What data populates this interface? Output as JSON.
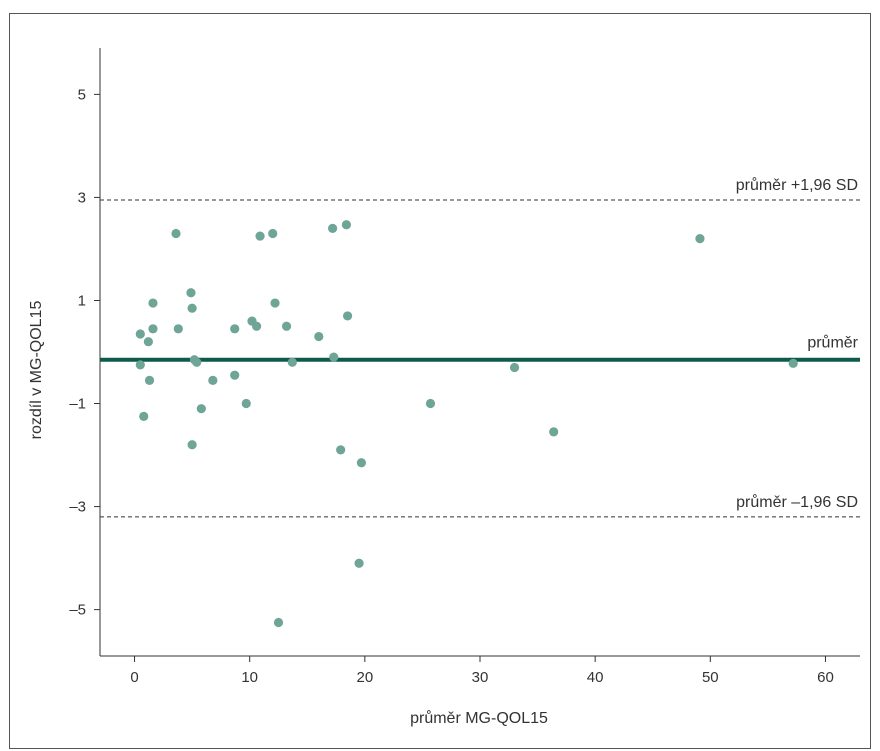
{
  "chart_data": {
    "type": "scatter",
    "title": "",
    "xlabel": "průměr MG-QOL15",
    "ylabel": "rozdíl v MG-QOL15",
    "xlim": [
      -3,
      63
    ],
    "ylim": [
      -5.9,
      5.9
    ],
    "x_ticks": [
      0,
      10,
      20,
      30,
      40,
      50,
      60
    ],
    "x_tick_labels": [
      "0",
      "10",
      "20",
      "30",
      "40",
      "50",
      "60"
    ],
    "y_ticks": [
      -5,
      -3,
      -1,
      1,
      3,
      5
    ],
    "y_tick_labels": [
      "–5",
      "–3",
      "–1",
      "1",
      "3",
      "5"
    ],
    "grid": false,
    "colors": {
      "points": "#6ea596",
      "mean_line": "#0e5a4c",
      "sd_lines": "#333333"
    },
    "reference_lines": [
      {
        "label": "průměr +1,96 SD",
        "y": 2.95,
        "style": "dashed"
      },
      {
        "label": "průměr",
        "y": -0.15,
        "style": "solid"
      },
      {
        "label": "průměr –1,96 SD",
        "y": -3.2,
        "style": "dashed"
      }
    ],
    "points": [
      {
        "x": 0.5,
        "y": 0.35
      },
      {
        "x": 0.5,
        "y": -0.25
      },
      {
        "x": 0.8,
        "y": -1.25
      },
      {
        "x": 1.2,
        "y": 0.2
      },
      {
        "x": 1.3,
        "y": -0.55
      },
      {
        "x": 1.6,
        "y": 0.45
      },
      {
        "x": 1.6,
        "y": 0.95
      },
      {
        "x": 3.6,
        "y": 2.3
      },
      {
        "x": 3.8,
        "y": 0.45
      },
      {
        "x": 4.9,
        "y": 1.15
      },
      {
        "x": 5.0,
        "y": 0.85
      },
      {
        "x": 5.0,
        "y": -1.8
      },
      {
        "x": 5.2,
        "y": -0.15
      },
      {
        "x": 5.4,
        "y": -0.2
      },
      {
        "x": 5.8,
        "y": -1.1
      },
      {
        "x": 6.8,
        "y": -0.55
      },
      {
        "x": 8.7,
        "y": -0.45
      },
      {
        "x": 8.7,
        "y": 0.45
      },
      {
        "x": 9.7,
        "y": -1.0
      },
      {
        "x": 10.2,
        "y": 0.6
      },
      {
        "x": 10.6,
        "y": 0.5
      },
      {
        "x": 10.9,
        "y": 2.25
      },
      {
        "x": 12.0,
        "y": 2.3
      },
      {
        "x": 12.2,
        "y": 0.95
      },
      {
        "x": 12.5,
        "y": -5.25
      },
      {
        "x": 13.2,
        "y": 0.5
      },
      {
        "x": 13.7,
        "y": -0.2
      },
      {
        "x": 16.0,
        "y": 0.3
      },
      {
        "x": 17.2,
        "y": 2.4
      },
      {
        "x": 17.3,
        "y": -0.1
      },
      {
        "x": 17.9,
        "y": -1.9
      },
      {
        "x": 18.4,
        "y": 2.47
      },
      {
        "x": 18.5,
        "y": 0.7
      },
      {
        "x": 19.5,
        "y": -4.1
      },
      {
        "x": 19.7,
        "y": -2.15
      },
      {
        "x": 25.7,
        "y": -1.0
      },
      {
        "x": 33.0,
        "y": -0.3
      },
      {
        "x": 36.4,
        "y": -1.55
      },
      {
        "x": 49.1,
        "y": 2.2
      },
      {
        "x": 57.2,
        "y": -0.22
      }
    ]
  }
}
